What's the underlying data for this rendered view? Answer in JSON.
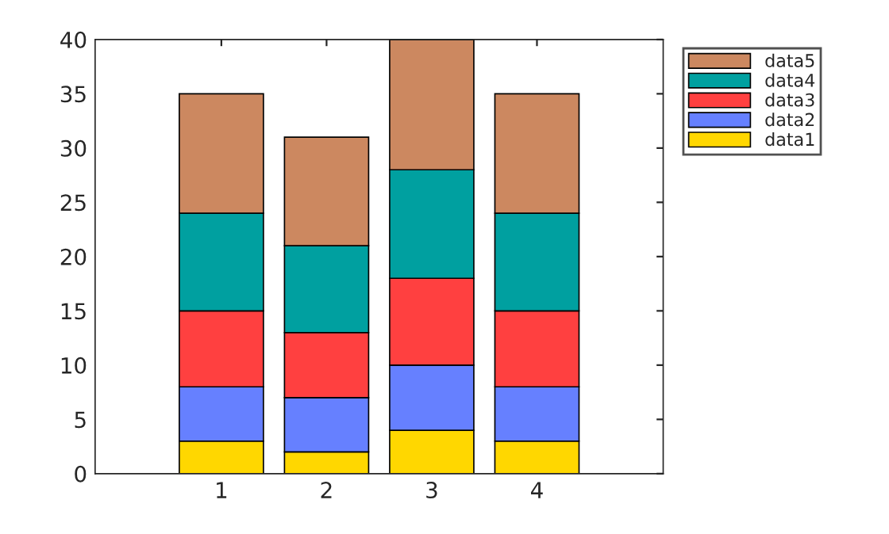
{
  "chart_data": {
    "type": "bar",
    "stacked": true,
    "categories": [
      "1",
      "2",
      "3",
      "4"
    ],
    "series": [
      {
        "name": "data1",
        "color": "#ffd700",
        "values": [
          3,
          2,
          4,
          3
        ]
      },
      {
        "name": "data2",
        "color": "#6680ff",
        "values": [
          5,
          5,
          6,
          5
        ]
      },
      {
        "name": "data3",
        "color": "#ff4040",
        "values": [
          7,
          6,
          8,
          7
        ]
      },
      {
        "name": "data4",
        "color": "#00a0a0",
        "values": [
          9,
          8,
          10,
          9
        ]
      },
      {
        "name": "data5",
        "color": "#cc8860",
        "values": [
          11,
          10,
          12,
          11
        ]
      }
    ],
    "ylim": [
      0,
      40
    ],
    "yticks": [
      0,
      5,
      10,
      15,
      20,
      25,
      30,
      35,
      40
    ],
    "grid": false,
    "legend": "top right"
  }
}
